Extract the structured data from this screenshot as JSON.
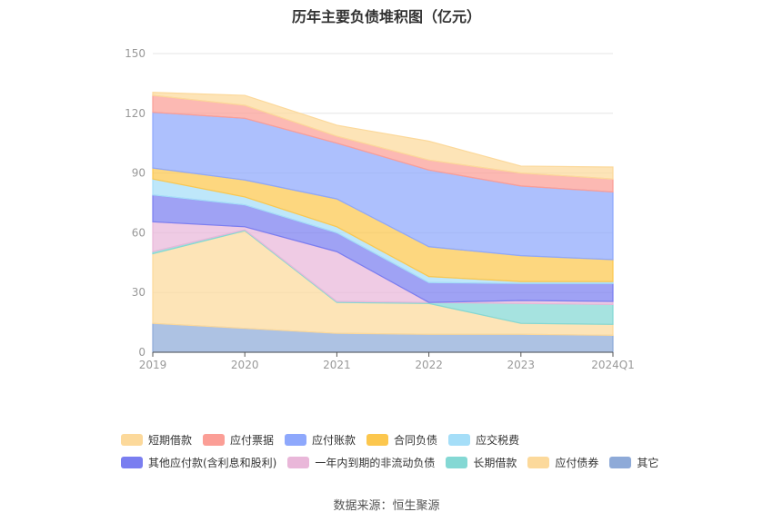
{
  "chart_data": {
    "type": "area",
    "title": "历年主要负债堆积图（亿元）",
    "x": [
      "2019",
      "2020",
      "2021",
      "2022",
      "2023",
      "2024Q1"
    ],
    "y_ticks": [
      "0",
      "30",
      "60",
      "90",
      "120",
      "150"
    ],
    "ylim": [
      0,
      150
    ],
    "grid": true,
    "legend_position": "bottom",
    "series": [
      {
        "name": "其它",
        "color": "#8eaad8",
        "values": [
          14.5,
          12,
          9.5,
          9,
          9,
          8.5
        ]
      },
      {
        "name": "应付债券",
        "color": "#fcd99b",
        "values": [
          35,
          49,
          15.5,
          15.5,
          5.5,
          5.5
        ]
      },
      {
        "name": "长期借款",
        "color": "#84d8d4",
        "values": [
          1,
          0.5,
          0.5,
          0.5,
          10,
          10
        ]
      },
      {
        "name": "一年内到期的非流动负债",
        "color": "#e9b7d9",
        "values": [
          15,
          1.5,
          25,
          0,
          1.5,
          1.5
        ]
      },
      {
        "name": "其他应付款(含利息和股利)",
        "color": "#7a7ef0",
        "values": [
          13.5,
          11,
          9.5,
          10,
          8.5,
          9
        ]
      },
      {
        "name": "应交税费",
        "color": "#a5def8",
        "values": [
          8,
          4,
          3,
          3,
          1,
          1
        ]
      },
      {
        "name": "合同负债",
        "color": "#fcc74e",
        "values": [
          5.5,
          8.5,
          14,
          15,
          13,
          11
        ]
      },
      {
        "name": "应付账款",
        "color": "#8ea8fc",
        "values": [
          28,
          31,
          28,
          38.5,
          35,
          34
        ]
      },
      {
        "name": "应付票据",
        "color": "#fb9e96",
        "values": [
          8.5,
          6.5,
          3.5,
          5,
          6.5,
          6.5
        ]
      },
      {
        "name": "短期借款",
        "color": "#fcd99b",
        "values": [
          1.5,
          5,
          5.5,
          9.5,
          3.5,
          6
        ]
      }
    ],
    "legend_order": [
      "短期借款",
      "应付票据",
      "应付账款",
      "合同负债",
      "应交税费",
      "其他应付款(含利息和股利)",
      "一年内到期的非流动负债",
      "长期借款",
      "应付债券",
      "其它"
    ]
  },
  "source": "数据来源：恒生聚源"
}
